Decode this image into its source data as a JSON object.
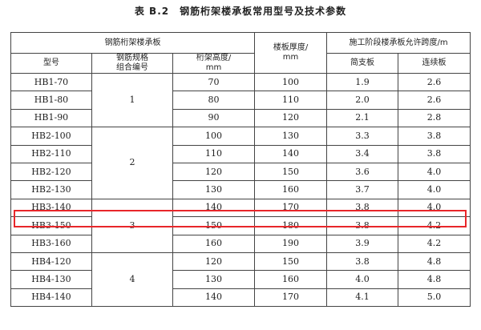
{
  "title": "表 B.2　钢筋桁架楼承板常用型号及技术参数",
  "header": {
    "group_left": "钢筋桁架楼承板",
    "model": "型号",
    "spec_line1": "钢筋规格",
    "spec_line2": "组合编号",
    "height_line1": "桁架高度/",
    "height_line2": "mm",
    "thickness_line1": "楼板厚度/",
    "thickness_line2": "mm",
    "group_right": "施工阶段楼承板允许跨度/m",
    "simple": "简支板",
    "continuous": "连续板"
  },
  "groups": [
    "1",
    "2",
    "3",
    "4"
  ],
  "rows": [
    {
      "model": "HB1-70",
      "height": "70",
      "thickness": "100",
      "simple": "1.9",
      "continuous": "2.6"
    },
    {
      "model": "HB1-80",
      "height": "80",
      "thickness": "110",
      "simple": "2.0",
      "continuous": "2.6"
    },
    {
      "model": "HB1-90",
      "height": "90",
      "thickness": "120",
      "simple": "2.1",
      "continuous": "2.8"
    },
    {
      "model": "HB2-100",
      "height": "100",
      "thickness": "130",
      "simple": "3.3",
      "continuous": "3.8"
    },
    {
      "model": "HB2-110",
      "height": "110",
      "thickness": "140",
      "simple": "3.4",
      "continuous": "3.8"
    },
    {
      "model": "HB2-120",
      "height": "120",
      "thickness": "150",
      "simple": "3.6",
      "continuous": "4.0"
    },
    {
      "model": "HB2-130",
      "height": "130",
      "thickness": "160",
      "simple": "3.7",
      "continuous": "4.0"
    },
    {
      "model": "HB3-140",
      "height": "140",
      "thickness": "170",
      "simple": "3.8",
      "continuous": "4.0"
    },
    {
      "model": "HB3-150",
      "height": "150",
      "thickness": "180",
      "simple": "3.8",
      "continuous": "4.2"
    },
    {
      "model": "HB3-160",
      "height": "160",
      "thickness": "190",
      "simple": "3.9",
      "continuous": "4.2"
    },
    {
      "model": "HB4-120",
      "height": "120",
      "thickness": "150",
      "simple": "3.8",
      "continuous": "4.8"
    },
    {
      "model": "HB4-130",
      "height": "130",
      "thickness": "160",
      "simple": "4.0",
      "continuous": "4.8"
    },
    {
      "model": "HB4-140",
      "height": "140",
      "thickness": "170",
      "simple": "4.1",
      "continuous": "5.0"
    }
  ],
  "highlight_color": "#e8262a"
}
